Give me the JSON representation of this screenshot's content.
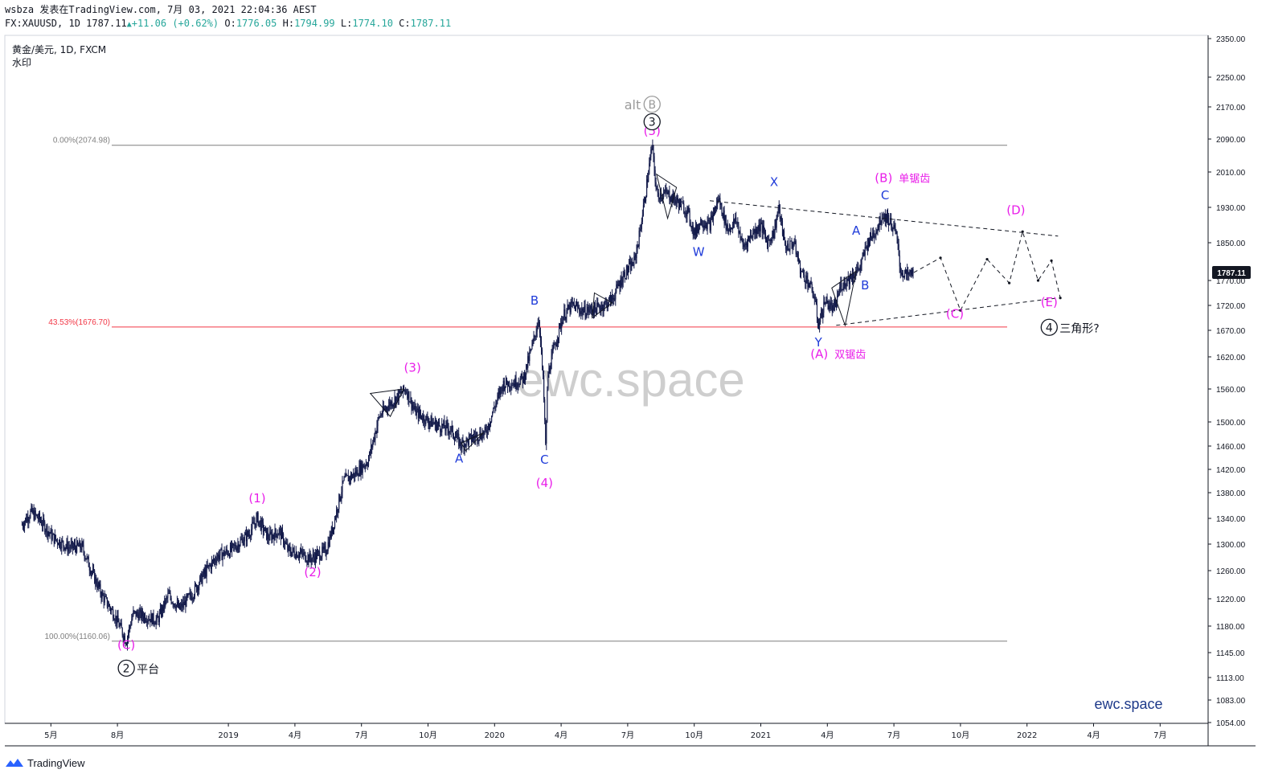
{
  "header": {
    "line1": "wsbza 发表在TradingView.com, 7月 03, 2021 22:04:36 AEST",
    "symbol": "FX:XAUUSD, 1D 1787.11",
    "change": "+11.06 (+0.62%)",
    "o_label": "O:",
    "o_value": "1776.05",
    "h_label": "H:",
    "h_value": "1794.99",
    "l_label": "L:",
    "l_value": "1774.10",
    "c_label": "C:",
    "c_value": "1787.11"
  },
  "legend": {
    "title": "黄金/美元, 1D, FXCM",
    "subtitle": "水印"
  },
  "watermark": "ewc.space",
  "brand": "ewc.space",
  "footer": {
    "logo_text": "TradingView"
  },
  "colors": {
    "candles": "#131a4a",
    "magenta": "#e91ee9",
    "blue": "#1f3bd9",
    "fib": "#7f7f7f",
    "fib_red": "#f23645",
    "price_tag": "#131722",
    "brand": "#1e3a8a"
  },
  "chart_data": {
    "type": "candlestick",
    "instrument": "黄金/美元",
    "timeframe": "1D",
    "ylim": [
      1054,
      2350
    ],
    "y_ticks": [
      2350,
      2250,
      2170,
      2090,
      2010,
      1930,
      1850,
      1770,
      1720,
      1670,
      1620,
      1560,
      1500,
      1460,
      1420,
      1380,
      1340,
      1300,
      1260,
      1220,
      1180,
      1145,
      1113,
      1083,
      1054
    ],
    "y_tick_labels": [
      "2350.00",
      "2250.00",
      "2170.00",
      "2090.00",
      "2010.00",
      "1930.00",
      "1850.00",
      "1770.00",
      "1720.00",
      "1670.00",
      "1620.00",
      "1560.00",
      "1500.00",
      "1460.00",
      "1420.00",
      "1380.00",
      "1340.00",
      "1300.00",
      "1260.00",
      "1220.00",
      "1180.00",
      "1145.00",
      "1113.00",
      "1083.00",
      "1054.00"
    ],
    "x_ticks": [
      {
        "label": "5月",
        "t": 0.5
      },
      {
        "label": "8月",
        "t": 3.5
      },
      {
        "label": "2019",
        "t": 8.5
      },
      {
        "label": "4月",
        "t": 11.5
      },
      {
        "label": "7月",
        "t": 14.5
      },
      {
        "label": "10月",
        "t": 17.5
      },
      {
        "label": "2020",
        "t": 20.5
      },
      {
        "label": "4月",
        "t": 23.5
      },
      {
        "label": "7月",
        "t": 26.5
      },
      {
        "label": "10月",
        "t": 29.5
      },
      {
        "label": "2021",
        "t": 32.5
      },
      {
        "label": "4月",
        "t": 35.5
      },
      {
        "label": "7月",
        "t": 38.5
      },
      {
        "label": "10月",
        "t": 41.5
      },
      {
        "label": "2022",
        "t": 44.5
      },
      {
        "label": "4月",
        "t": 47.5
      },
      {
        "label": "7月",
        "t": 50.5
      }
    ],
    "last_price": 1787.11,
    "last_price_label": "1787.11",
    "path_points": [
      [
        -0.8,
        1330
      ],
      [
        -0.4,
        1350
      ],
      [
        0.0,
        1338
      ],
      [
        0.6,
        1310
      ],
      [
        1.3,
        1295
      ],
      [
        1.9,
        1296
      ],
      [
        2.3,
        1262
      ],
      [
        2.8,
        1225
      ],
      [
        3.3,
        1200
      ],
      [
        3.9,
        1160
      ],
      [
        4.2,
        1198
      ],
      [
        4.6,
        1196
      ],
      [
        5.3,
        1188
      ],
      [
        5.8,
        1225
      ],
      [
        6.3,
        1205
      ],
      [
        6.9,
        1228
      ],
      [
        7.4,
        1255
      ],
      [
        8.0,
        1282
      ],
      [
        8.6,
        1290
      ],
      [
        9.4,
        1315
      ],
      [
        9.8,
        1340
      ],
      [
        10.3,
        1310
      ],
      [
        10.8,
        1320
      ],
      [
        11.2,
        1290
      ],
      [
        11.8,
        1285
      ],
      [
        12.2,
        1278
      ],
      [
        12.9,
        1290
      ],
      [
        13.2,
        1325
      ],
      [
        13.7,
        1400
      ],
      [
        14.2,
        1412
      ],
      [
        14.8,
        1435
      ],
      [
        15.3,
        1510
      ],
      [
        15.7,
        1530
      ],
      [
        16.1,
        1545
      ],
      [
        16.5,
        1560
      ],
      [
        16.9,
        1520
      ],
      [
        17.4,
        1505
      ],
      [
        17.9,
        1495
      ],
      [
        18.5,
        1488
      ],
      [
        19.0,
        1462
      ],
      [
        19.7,
        1478
      ],
      [
        20.1,
        1482
      ],
      [
        20.5,
        1528
      ],
      [
        20.9,
        1570
      ],
      [
        21.4,
        1572
      ],
      [
        21.8,
        1580
      ],
      [
        22.2,
        1640
      ],
      [
        22.5,
        1695
      ],
      [
        22.7,
        1565
      ],
      [
        22.8,
        1455
      ],
      [
        22.9,
        1585
      ],
      [
        23.2,
        1640
      ],
      [
        23.6,
        1700
      ],
      [
        24.0,
        1720
      ],
      [
        24.5,
        1708
      ],
      [
        25.2,
        1715
      ],
      [
        25.8,
        1732
      ],
      [
        26.3,
        1780
      ],
      [
        26.8,
        1810
      ],
      [
        27.0,
        1860
      ],
      [
        27.3,
        1960
      ],
      [
        27.6,
        2075
      ],
      [
        27.8,
        1960
      ],
      [
        28.3,
        1960
      ],
      [
        28.8,
        1940
      ],
      [
        29.2,
        1920
      ],
      [
        29.5,
        1870
      ],
      [
        29.8,
        1900
      ],
      [
        30.2,
        1890
      ],
      [
        30.6,
        1950
      ],
      [
        31.0,
        1880
      ],
      [
        31.4,
        1900
      ],
      [
        31.7,
        1840
      ],
      [
        32.1,
        1870
      ],
      [
        32.5,
        1890
      ],
      [
        32.8,
        1850
      ],
      [
        33.1,
        1875
      ],
      [
        33.3,
        1930
      ],
      [
        33.6,
        1840
      ],
      [
        34.0,
        1850
      ],
      [
        34.3,
        1790
      ],
      [
        34.6,
        1770
      ],
      [
        34.9,
        1740
      ],
      [
        35.1,
        1680
      ],
      [
        35.4,
        1730
      ],
      [
        35.8,
        1710
      ],
      [
        36.1,
        1760
      ],
      [
        36.6,
        1780
      ],
      [
        37.0,
        1800
      ],
      [
        37.3,
        1850
      ],
      [
        37.7,
        1880
      ],
      [
        38.0,
        1915
      ],
      [
        38.3,
        1900
      ],
      [
        38.6,
        1870
      ],
      [
        38.8,
        1790
      ],
      [
        39.1,
        1780
      ],
      [
        39.4,
        1787
      ]
    ],
    "fib_levels": [
      {
        "label": "0.00%(2074.98)",
        "value": 2074.98,
        "color": "#7f7f7f"
      },
      {
        "label": "43.53%(1676.70)",
        "value": 1676.7,
        "color": "#f23645"
      },
      {
        "label": "100.00%(1160.06)",
        "value": 1160.06,
        "color": "#7f7f7f"
      }
    ],
    "triangle_lines": [
      {
        "from": [
          30.2,
          1945
        ],
        "to": [
          38.2,
          1910
        ],
        "extend_to": [
          45.9,
          1865
        ]
      },
      {
        "from": [
          35.9,
          1680
        ],
        "to": [
          41.3,
          1712
        ],
        "extend_to": [
          45.9,
          1735
        ]
      }
    ],
    "projection": [
      [
        39.4,
        1787
      ],
      [
        40.6,
        1818
      ],
      [
        41.5,
        1710
      ],
      [
        42.7,
        1815
      ],
      [
        43.7,
        1765
      ],
      [
        44.3,
        1875
      ],
      [
        45.0,
        1770
      ],
      [
        45.6,
        1812
      ],
      [
        46.0,
        1735
      ]
    ],
    "wave_labels": [
      {
        "text": "(1)",
        "t": 9.8,
        "v": 1365,
        "color": "#e91ee9"
      },
      {
        "text": "(2)",
        "t": 12.3,
        "v": 1252,
        "color": "#e91ee9"
      },
      {
        "text": "(3)",
        "t": 16.8,
        "v": 1592,
        "color": "#e91ee9"
      },
      {
        "text": "A",
        "t": 18.9,
        "v": 1432,
        "color": "#1f3bd9"
      },
      {
        "text": "B",
        "t": 22.3,
        "v": 1722,
        "color": "#1f3bd9"
      },
      {
        "text": "C",
        "t": 22.75,
        "v": 1430,
        "color": "#1f3bd9"
      },
      {
        "text": "(4)",
        "t": 22.75,
        "v": 1390,
        "color": "#e91ee9"
      },
      {
        "text": "(5)",
        "t": 27.6,
        "v": 2100,
        "color": "#e91ee9"
      },
      {
        "text": "W",
        "t": 29.7,
        "v": 1822,
        "color": "#1f3bd9"
      },
      {
        "text": "X",
        "t": 33.1,
        "v": 1978,
        "color": "#1f3bd9"
      },
      {
        "text": "Y",
        "t": 35.1,
        "v": 1640,
        "color": "#1f3bd9"
      },
      {
        "text": "A",
        "t": 36.8,
        "v": 1868,
        "color": "#1f3bd9"
      },
      {
        "text": "B",
        "t": 37.2,
        "v": 1752,
        "color": "#1f3bd9"
      },
      {
        "text": "C",
        "t": 38.1,
        "v": 1948,
        "color": "#1f3bd9"
      },
      {
        "text": "(C)",
        "t": 41.25,
        "v": 1695,
        "color": "#e91ee9"
      },
      {
        "text": "(D)",
        "t": 44.0,
        "v": 1915,
        "color": "#e91ee9"
      },
      {
        "text": "(E)",
        "t": 45.5,
        "v": 1718,
        "color": "#e91ee9"
      },
      {
        "text": "(C)",
        "t": 3.9,
        "v": 1150,
        "color": "#e91ee9"
      }
    ],
    "rich_labels": [
      {
        "label": "(A)",
        "suffix": "双锯齿",
        "t": 35.1,
        "v": 1618,
        "color": "#e91ee9"
      },
      {
        "label": "(B)",
        "suffix": "单锯齿",
        "t": 38.0,
        "v": 1987,
        "color": "#e91ee9"
      }
    ],
    "circled_labels": [
      {
        "num": "2",
        "suffix": "平台",
        "t": 3.9,
        "v": 1125,
        "color": "#131722"
      },
      {
        "num": "3",
        "prefix": "",
        "t": 27.6,
        "v": 2133,
        "color": "#131722"
      },
      {
        "num": "B",
        "prefix": "alt",
        "t": 27.6,
        "v": 2177,
        "color": "#9a9a9a"
      },
      {
        "num": "4",
        "suffix": "三角形?",
        "t": 45.5,
        "v": 1676,
        "color": "#131722"
      }
    ],
    "small_triangles": [
      [
        [
          14.9,
          1552
        ],
        [
          16.4,
          1560
        ],
        [
          15.8,
          1510
        ]
      ],
      [
        [
          19.0,
          1465
        ],
        [
          20.0,
          1482
        ],
        [
          19.2,
          1452
        ]
      ],
      [
        [
          25.0,
          1745
        ],
        [
          25.8,
          1725
        ],
        [
          24.9,
          1695
        ]
      ],
      [
        [
          27.8,
          2005
        ],
        [
          28.7,
          1975
        ],
        [
          28.3,
          1905
        ]
      ],
      [
        [
          35.7,
          1755
        ],
        [
          36.8,
          1790
        ],
        [
          36.3,
          1680
        ]
      ]
    ]
  }
}
